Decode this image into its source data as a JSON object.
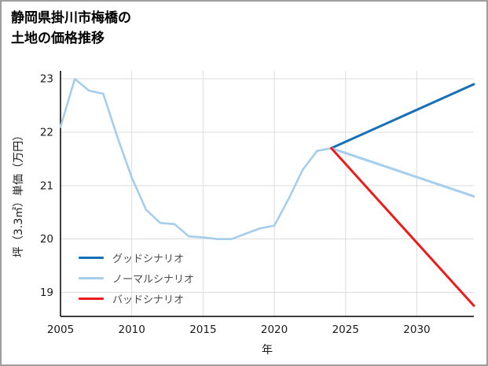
{
  "page": {
    "title_line1": "静岡県掛川市梅橋の",
    "title_line2": "土地の価格推移"
  },
  "chart_data": {
    "type": "line",
    "title": "静岡県掛川市梅橋の土地の価格推移",
    "xlabel": "年",
    "ylabel": "坪（3.3㎡）単価（万円）",
    "xlim": [
      2005,
      2034
    ],
    "ylim": [
      18.55,
      23.15
    ],
    "xticks": [
      2005,
      2010,
      2015,
      2020,
      2025,
      2030
    ],
    "yticks": [
      19,
      20,
      21,
      22,
      23
    ],
    "grid": true,
    "legend_position": "lower-left",
    "series": [
      {
        "name": "historical",
        "color": "#a5cdee",
        "width": 2.6,
        "x": [
          2005,
          2006,
          2007,
          2008,
          2009,
          2010,
          2011,
          2012,
          2013,
          2014,
          2015,
          2016,
          2017,
          2018,
          2019,
          2020,
          2021,
          2022,
          2023,
          2024
        ],
        "y": [
          22.1,
          23.0,
          22.78,
          22.72,
          21.9,
          21.15,
          20.55,
          20.3,
          20.28,
          20.05,
          20.03,
          20.0,
          20.0,
          20.1,
          20.2,
          20.25,
          20.75,
          21.3,
          21.65,
          21.7
        ]
      },
      {
        "name": "グッドシナリオ",
        "color": "#1670b8",
        "width": 3,
        "x": [
          2024,
          2034
        ],
        "y": [
          21.7,
          22.9
        ]
      },
      {
        "name": "ノーマルシナリオ",
        "color": "#a5cdee",
        "width": 3,
        "x": [
          2024,
          2034
        ],
        "y": [
          21.7,
          20.8
        ]
      },
      {
        "name": "バッドシナリオ",
        "color": "#ec1c1c",
        "width": 3,
        "x": [
          2024,
          2034
        ],
        "y": [
          21.7,
          18.75
        ]
      }
    ],
    "legend": [
      {
        "label": "グッドシナリオ",
        "color": "#1670b8"
      },
      {
        "label": "ノーマルシナリオ",
        "color": "#a5cdee"
      },
      {
        "label": "バッドシナリオ",
        "color": "#ec1c1c"
      }
    ]
  }
}
